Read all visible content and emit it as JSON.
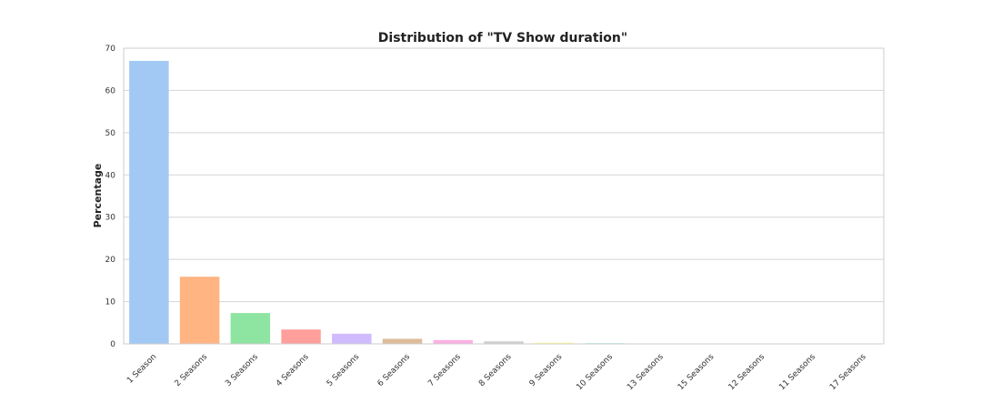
{
  "chart_data": {
    "type": "bar",
    "title": "Distribution of \"TV Show duration\"",
    "xlabel": "",
    "ylabel": "Percentage",
    "ylim": [
      0,
      70
    ],
    "yticks": [
      "0",
      "10",
      "20",
      "30",
      "40",
      "50",
      "60",
      "70"
    ],
    "grid": true,
    "legend": "none",
    "categories": [
      "1 Season",
      "2 Seasons",
      "3 Seasons",
      "4 Seasons",
      "5 Seasons",
      "6 Seasons",
      "7 Seasons",
      "8 Seasons",
      "9 Seasons",
      "10 Seasons",
      "13 Seasons",
      "15 Seasons",
      "12 Seasons",
      "11 Seasons",
      "17 Seasons"
    ],
    "values": [
      67.0,
      15.9,
      7.3,
      3.4,
      2.4,
      1.2,
      0.9,
      0.6,
      0.3,
      0.2,
      0.1,
      0.1,
      0.1,
      0.1,
      0.05
    ],
    "colors": [
      "#a1c9f4",
      "#ffb482",
      "#8de5a1",
      "#ff9f9b",
      "#d0bbff",
      "#debb9b",
      "#fab0e4",
      "#cfcfcf",
      "#fffea3",
      "#b9f2f0",
      "#a1c9f4",
      "#ffb482",
      "#8de5a1",
      "#ff9f9b",
      "#d0bbff"
    ]
  }
}
